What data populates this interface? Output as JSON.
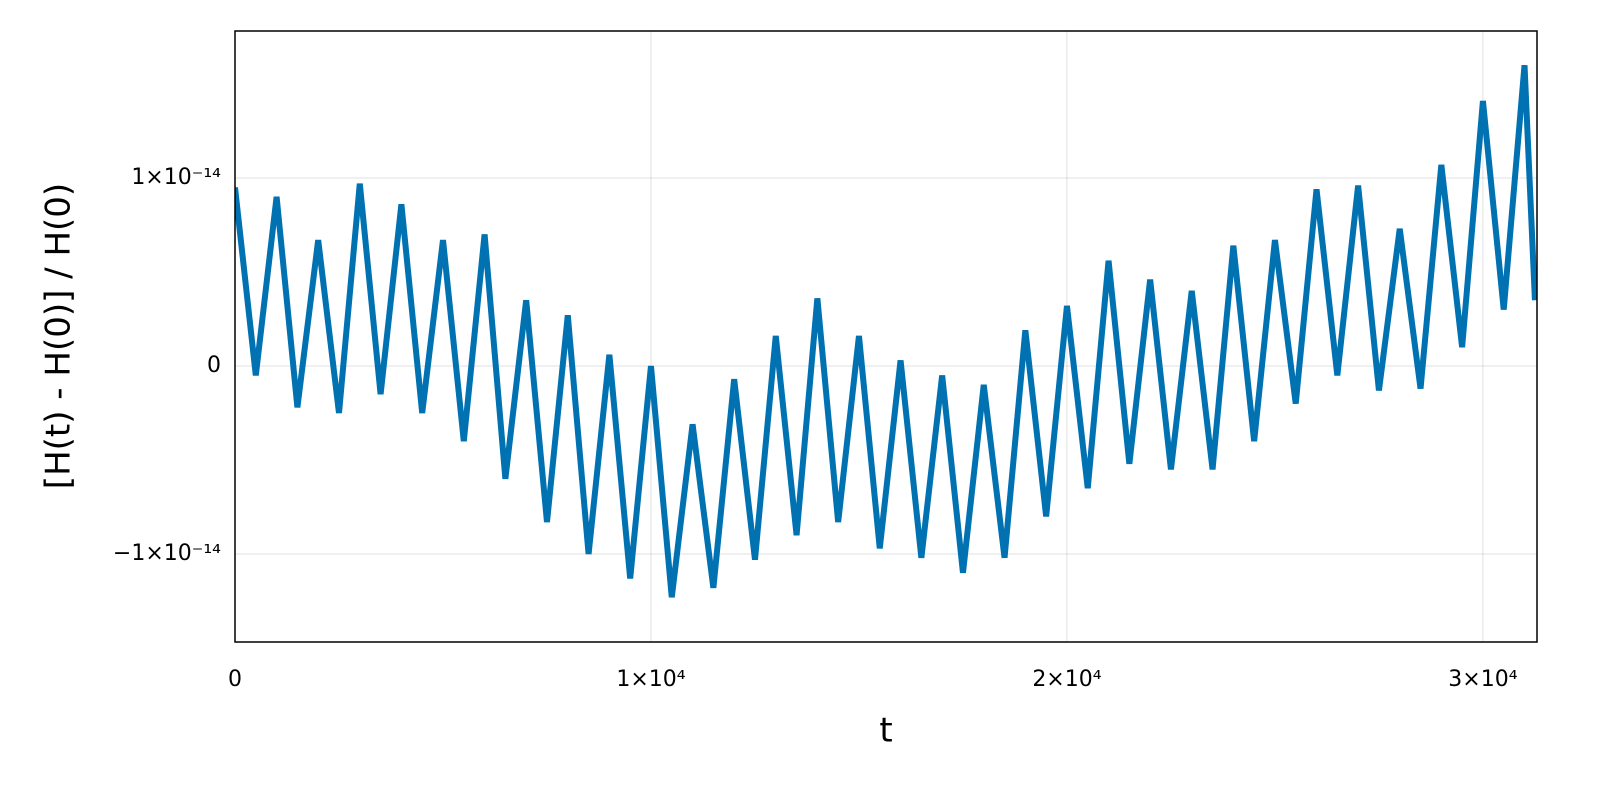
{
  "chart_data": {
    "type": "line",
    "xlabel": "t",
    "ylabel": "[H(t) - H(0)] / H(0)",
    "color": "#0072b2",
    "grid": true,
    "xlim": [
      0,
      31300
    ],
    "ylim": [
      -1.468e-14,
      1.782e-14
    ],
    "xticks": [
      0,
      {
        "value": 10000,
        "label": "1×10⁴"
      },
      {
        "value": 20000,
        "label": "2×10⁴"
      },
      {
        "value": 30000,
        "label": "3×10⁴"
      }
    ],
    "yticks": [
      {
        "value": -1e-14,
        "label": "−1×10⁻¹⁴"
      },
      0,
      {
        "value": 1e-14,
        "label": "1×10⁻¹⁴"
      }
    ],
    "x": [
      0,
      500,
      1000,
      1500,
      2000,
      2500,
      3000,
      3500,
      4000,
      4500,
      5000,
      5500,
      6000,
      6500,
      7000,
      7500,
      8000,
      8500,
      9000,
      9500,
      10000,
      10500,
      11000,
      11500,
      12000,
      12500,
      13000,
      13500,
      14000,
      14500,
      15000,
      15500,
      16000,
      16500,
      17000,
      17500,
      18000,
      18500,
      19000,
      19500,
      20000,
      20500,
      21000,
      21500,
      22000,
      22500,
      23000,
      23500,
      24000,
      24500,
      25000,
      25500,
      26000,
      26500,
      27000,
      27500,
      28000,
      28500,
      29000,
      29500,
      30000,
      30500,
      31000,
      31250
    ],
    "values": [
      9.5e-15,
      -5e-16,
      9e-15,
      -2.2e-15,
      6.7e-15,
      -2.5e-15,
      9.7e-15,
      -1.5e-15,
      8.6e-15,
      -2.5e-15,
      6.7e-15,
      -4e-15,
      7e-15,
      -6e-15,
      3.5e-15,
      -8.3e-15,
      2.7e-15,
      -1e-14,
      6e-16,
      -1.13e-14,
      0,
      -1.23e-14,
      -3.1e-15,
      -1.18e-14,
      -7e-16,
      -1.03e-14,
      1.6e-15,
      -9e-15,
      3.6e-15,
      -8.3e-15,
      1.6e-15,
      -9.7e-15,
      3e-16,
      -1.02e-14,
      -5e-16,
      -1.1e-14,
      -1e-15,
      -1.02e-14,
      1.9e-15,
      -8e-15,
      3.2e-15,
      -6.5e-15,
      5.6e-15,
      -5.2e-15,
      4.6e-15,
      -5.5e-15,
      4e-15,
      -5.5e-15,
      6.4e-15,
      -4e-15,
      6.7e-15,
      -2e-15,
      9.4e-15,
      -5e-16,
      9.6e-15,
      -1.3e-15,
      7.3e-15,
      -1.2e-15,
      1.07e-14,
      1e-15,
      1.41e-14,
      3e-15,
      1.6e-14,
      3.5e-15
    ]
  }
}
